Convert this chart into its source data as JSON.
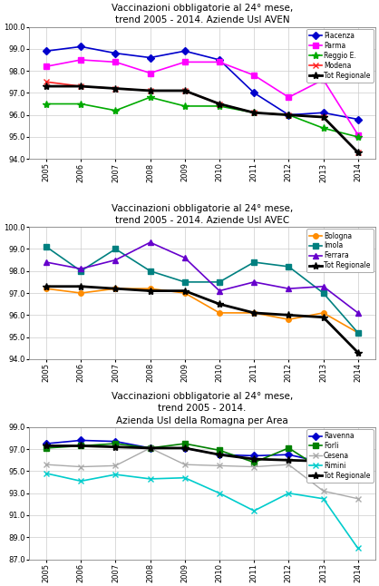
{
  "years": [
    2005,
    2006,
    2007,
    2008,
    2009,
    2010,
    2011,
    2012,
    2013,
    2014
  ],
  "chart1": {
    "title": "Vaccinazioni obbligatorie al 24° mese,\ntrend 2005 - 2014. Aziende Usl AVEN",
    "ylim": [
      94.0,
      100.0
    ],
    "yticks": [
      94.0,
      95.0,
      96.0,
      97.0,
      98.0,
      99.0,
      100.0
    ],
    "series": {
      "Piacenza": [
        98.9,
        99.1,
        98.8,
        98.6,
        98.9,
        98.5,
        97.0,
        96.0,
        96.1,
        95.8
      ],
      "Parma": [
        98.2,
        98.5,
        98.4,
        97.9,
        98.4,
        98.4,
        97.8,
        96.8,
        97.6,
        95.1
      ],
      "Reggio E.": [
        96.5,
        96.5,
        96.2,
        96.8,
        96.4,
        96.4,
        96.1,
        96.0,
        95.4,
        95.0
      ],
      "Modena": [
        97.5,
        97.3,
        97.2,
        97.1,
        97.1,
        96.5,
        96.1,
        96.0,
        95.9,
        94.3
      ],
      "Tot Regionale": [
        97.3,
        97.3,
        97.2,
        97.1,
        97.1,
        96.5,
        96.1,
        96.0,
        95.9,
        94.3
      ]
    },
    "colors": {
      "Piacenza": "#0000CC",
      "Parma": "#FF00FF",
      "Reggio E.": "#00AA00",
      "Modena": "#FF2222",
      "Tot Regionale": "#000000"
    },
    "markers": {
      "Piacenza": "D",
      "Parma": "s",
      "Reggio E.": "*",
      "Modena": "x",
      "Tot Regionale": "*"
    },
    "lws": {
      "Piacenza": 1.2,
      "Parma": 1.2,
      "Reggio E.": 1.2,
      "Modena": 1.2,
      "Tot Regionale": 2.0
    }
  },
  "chart2": {
    "title": "Vaccinazioni obbligatorie al 24° mese,\ntrend 2005 - 2014. Aziende Usl AVEC",
    "ylim": [
      94.0,
      100.0
    ],
    "yticks": [
      94.0,
      95.0,
      96.0,
      97.0,
      98.0,
      99.0,
      100.0
    ],
    "series": {
      "Bologna": [
        97.2,
        97.0,
        97.2,
        97.2,
        97.0,
        96.1,
        96.1,
        95.8,
        96.1,
        95.2
      ],
      "Imola": [
        99.1,
        98.0,
        99.0,
        98.0,
        97.5,
        97.5,
        98.4,
        98.2,
        97.0,
        95.2
      ],
      "Ferrara": [
        98.4,
        98.1,
        98.5,
        99.3,
        98.6,
        97.1,
        97.5,
        97.2,
        97.3,
        96.1
      ],
      "Tot Regionale": [
        97.3,
        97.3,
        97.2,
        97.1,
        97.1,
        96.5,
        96.1,
        96.0,
        95.9,
        94.3
      ]
    },
    "colors": {
      "Bologna": "#FF8C00",
      "Imola": "#008080",
      "Ferrara": "#6600CC",
      "Tot Regionale": "#000000"
    },
    "markers": {
      "Bologna": "o",
      "Imola": "s",
      "Ferrara": "^",
      "Tot Regionale": "*"
    },
    "lws": {
      "Bologna": 1.2,
      "Imola": 1.2,
      "Ferrara": 1.2,
      "Tot Regionale": 2.0
    }
  },
  "chart3": {
    "title": "Vaccinazioni obbligatorie al 24° mese,\ntrend 2005 - 2014.\nAzienda Usl della Romagna per Area",
    "ylim": [
      87.0,
      99.0
    ],
    "yticks": [
      87.0,
      89.0,
      91.0,
      93.0,
      95.0,
      97.0,
      99.0
    ],
    "series": {
      "Ravenna": [
        97.5,
        97.8,
        97.7,
        97.1,
        97.1,
        96.5,
        96.4,
        96.5,
        95.8,
        95.2
      ],
      "Forli": [
        97.1,
        97.3,
        97.5,
        97.1,
        97.5,
        96.9,
        95.8,
        97.1,
        95.1,
        94.8
      ],
      "Cesena": [
        95.6,
        95.4,
        95.5,
        97.1,
        95.6,
        95.5,
        95.4,
        95.6,
        93.2,
        92.5
      ],
      "Rimini": [
        94.8,
        94.1,
        94.7,
        94.3,
        94.4,
        93.0,
        91.4,
        93.0,
        92.5,
        88.0
      ],
      "Tot Regionale": [
        97.3,
        97.3,
        97.2,
        97.1,
        97.1,
        96.5,
        96.1,
        96.0,
        95.9,
        94.3
      ]
    },
    "colors": {
      "Ravenna": "#0000CC",
      "Forli": "#008000",
      "Cesena": "#aaaaaa",
      "Rimini": "#00CCCC",
      "Tot Regionale": "#000000"
    },
    "markers": {
      "Ravenna": "D",
      "Forli": "s",
      "Cesena": "x",
      "Rimini": "x",
      "Tot Regionale": "*"
    },
    "lws": {
      "Ravenna": 1.2,
      "Forli": 1.2,
      "Cesena": 1.0,
      "Rimini": 1.2,
      "Tot Regionale": 2.0
    }
  },
  "figsize": [
    4.18,
    6.46
  ],
  "dpi": 100
}
